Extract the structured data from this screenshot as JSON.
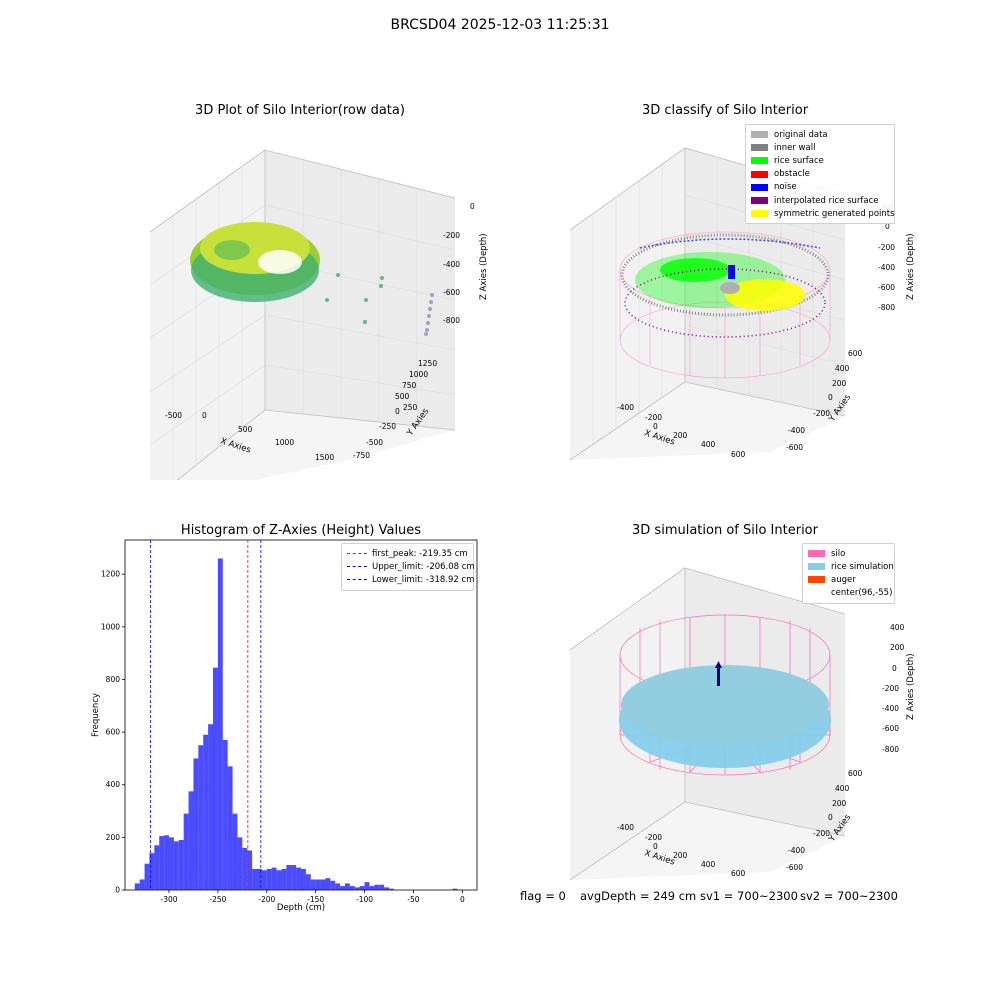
{
  "figure": {
    "suptitle": "BRCSD04 2025-12-03 11:25:31",
    "footer": {
      "flag": "flag = 0",
      "avg_depth": "avgDepth = 249 cm",
      "sv1": "sv1 = 700~2300",
      "sv2": "sv2 = 700~2300"
    }
  },
  "panels": {
    "raw": {
      "title": "3D Plot of Silo Interior(row data)",
      "xlabel": "X Axies",
      "ylabel": "Y Axies",
      "zlabel": "Z Axies (Depth)",
      "xticks": [
        "-500",
        "0",
        "500",
        "1000",
        "1500"
      ],
      "yticks": [
        "-750",
        "-500",
        "-250",
        "0",
        "250",
        "500",
        "750",
        "1000",
        "1250"
      ],
      "zticks": [
        "0",
        "-200",
        "-400",
        "-600",
        "-800"
      ]
    },
    "classify": {
      "title": "3D classify of Silo Interior",
      "xlabel": "X Axies",
      "ylabel": "Y Axies",
      "zlabel": "Z Axies (Depth)",
      "xticks": [
        "-400",
        "-200",
        "0",
        "200",
        "400",
        "600"
      ],
      "yticks": [
        "-600",
        "-400",
        "-200",
        "0",
        "200",
        "400",
        "600"
      ],
      "zticks": [
        "200",
        "0",
        "-200",
        "-400",
        "-600",
        "-800"
      ],
      "legend": [
        {
          "label": "original data",
          "color": "#b0b0b0"
        },
        {
          "label": "inner wall",
          "color": "#808080"
        },
        {
          "label": "rice surface",
          "color": "#00ff00"
        },
        {
          "label": "obstacle",
          "color": "#ff0000"
        },
        {
          "label": "noise",
          "color": "#0000ff"
        },
        {
          "label": "interpolated rice surface",
          "color": "#800080"
        },
        {
          "label": "symmetric generated points",
          "color": "#ffff00"
        }
      ]
    },
    "simulation": {
      "title": "3D simulation of Silo Interior",
      "xlabel": "X Axies",
      "ylabel": "Y Axies",
      "zlabel": "Z Axies (Depth)",
      "xticks": [
        "-400",
        "-200",
        "0",
        "200",
        "400",
        "600"
      ],
      "yticks": [
        "-600",
        "-400",
        "-200",
        "0",
        "200",
        "400",
        "600"
      ],
      "zticks": [
        "400",
        "200",
        "0",
        "-200",
        "-400",
        "-600",
        "-800"
      ],
      "legend": [
        {
          "label": "silo",
          "color": "#ff69b4"
        },
        {
          "label": "rice simulation",
          "color": "#87ceeb"
        },
        {
          "label": "auger",
          "color": "#ff4500"
        },
        {
          "label": "center(96,-55)",
          "color": "#ffffff"
        }
      ]
    }
  },
  "chart_data": {
    "type": "bar",
    "title": "Histogram of Z-Axies (Height) Values",
    "xlabel": "Depth (cm)",
    "ylabel": "Frequency",
    "xlim": [
      -345,
      15
    ],
    "ylim": [
      0,
      1330
    ],
    "xticks": [
      -300,
      -250,
      -200,
      -150,
      -100,
      -50,
      0
    ],
    "yticks": [
      0,
      200,
      400,
      600,
      800,
      1000,
      1200
    ],
    "bar_color": "#0000ff",
    "bin_width": 5,
    "bin_starts": [
      -335,
      -330,
      -325,
      -320,
      -315,
      -310,
      -305,
      -300,
      -295,
      -290,
      -285,
      -280,
      -275,
      -270,
      -265,
      -260,
      -255,
      -250,
      -245,
      -240,
      -235,
      -230,
      -225,
      -220,
      -215,
      -210,
      -205,
      -200,
      -195,
      -190,
      -185,
      -180,
      -175,
      -170,
      -165,
      -160,
      -155,
      -150,
      -145,
      -140,
      -135,
      -130,
      -125,
      -120,
      -115,
      -110,
      -105,
      -100,
      -95,
      -90,
      -85,
      -80,
      -75,
      -70,
      -65,
      -60,
      -55,
      -50,
      -45,
      -40,
      -35,
      -30,
      -25,
      -20,
      -15,
      -10,
      -5
    ],
    "counts": [
      25,
      40,
      100,
      140,
      170,
      205,
      208,
      200,
      185,
      190,
      290,
      375,
      500,
      550,
      590,
      630,
      845,
      1260,
      570,
      470,
      290,
      200,
      160,
      150,
      80,
      80,
      75,
      80,
      85,
      75,
      80,
      95,
      95,
      85,
      80,
      60,
      40,
      40,
      40,
      45,
      35,
      25,
      15,
      25,
      15,
      10,
      15,
      30,
      15,
      20,
      20,
      10,
      5,
      0,
      0,
      0,
      0,
      0,
      0,
      0,
      0,
      0,
      0,
      0,
      0,
      5,
      0
    ],
    "vlines": [
      {
        "label": "first_peak: -219.35 cm",
        "x": -219.35,
        "color": "#ff0000"
      },
      {
        "label": "Upper_limit: -206.08 cm",
        "x": -206.08,
        "color": "#0000ff"
      },
      {
        "label": "Lower_limit: -318.92 cm",
        "x": -318.92,
        "color": "#0000ff"
      }
    ]
  }
}
